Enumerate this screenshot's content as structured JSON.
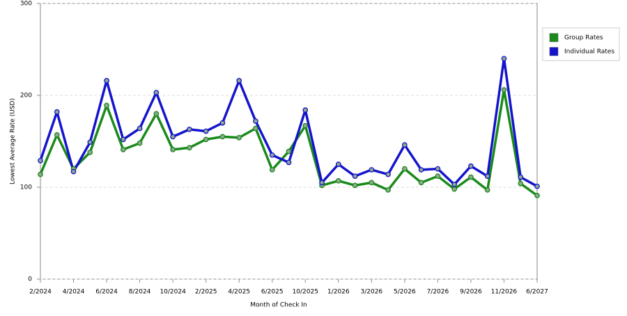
{
  "chart_data": {
    "type": "line",
    "x_label": "Month of Check In",
    "y_label": "Lowest Average Rate (USD)",
    "categories": [
      "2/2024",
      null,
      "4/2024",
      null,
      "6/2024",
      null,
      "8/2024",
      null,
      "10/2024",
      null,
      "2/2025",
      null,
      "4/2025",
      null,
      "6/2025",
      null,
      "10/2025",
      null,
      "1/2026",
      null,
      "3/2026",
      null,
      "5/2026",
      null,
      "7/2026",
      null,
      "9/2026",
      null,
      "11/2026",
      null,
      "6/2027"
    ],
    "series": [
      {
        "name": "Group Rates",
        "color": "#1a8a1a",
        "values": [
          114,
          157,
          120,
          138,
          189,
          141,
          148,
          180,
          141,
          143,
          152,
          155,
          154,
          164,
          119,
          139,
          167,
          102,
          107,
          102,
          105,
          97,
          120,
          105,
          112,
          98,
          111,
          97,
          206,
          104,
          91
        ]
      },
      {
        "name": "Individual Rates",
        "color": "#1414cc",
        "values": [
          129,
          182,
          117,
          149,
          216,
          152,
          164,
          203,
          155,
          163,
          161,
          170,
          216,
          172,
          135,
          127,
          184,
          105,
          125,
          112,
          119,
          114,
          146,
          119,
          120,
          103,
          123,
          112,
          240,
          111,
          101
        ]
      }
    ],
    "ylim": [
      0,
      300
    ],
    "yticks": [
      0,
      100,
      200,
      300
    ],
    "grid": true,
    "legend": "right"
  }
}
